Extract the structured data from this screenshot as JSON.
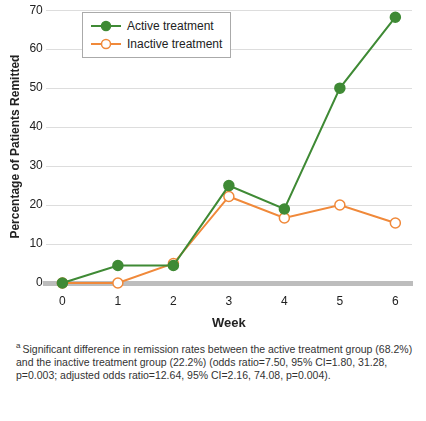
{
  "chart_data": {
    "type": "line",
    "x_label": "Week",
    "y_label": "Percentage of Patients Remitted",
    "x": [
      0,
      1,
      2,
      3,
      4,
      5,
      6
    ],
    "series": [
      {
        "name": "Active treatment",
        "color": "#3f8a35",
        "marker": "circle",
        "values": [
          0,
          4.5,
          4.5,
          25,
          19,
          50,
          68.2
        ]
      },
      {
        "name": "Inactive treatment",
        "color": "#f0893a",
        "marker": "circle_open",
        "values": [
          0,
          0,
          5,
          22.2,
          16.7,
          20,
          15.4
        ]
      }
    ],
    "xlim": [
      -0.3,
      6.3
    ],
    "xticks": [
      0,
      1,
      2,
      3,
      4,
      5,
      6
    ],
    "ylim": [
      0,
      70
    ],
    "yticks": [
      0,
      10,
      20,
      30,
      40,
      50,
      60,
      70
    ],
    "grid": true,
    "legend": "upper left",
    "annotations": [
      {
        "marker": "a",
        "text": "Significant difference in remission rates between the active treatment group (68.2%) and the inactive treatment group (22.2%) (odds ratio=7.50, 95% CI=1.80, 31.28, p=0.003; adjusted odds ratio=12.64, 95% CI=2.16, 74.08, p=0.004)."
      }
    ]
  }
}
